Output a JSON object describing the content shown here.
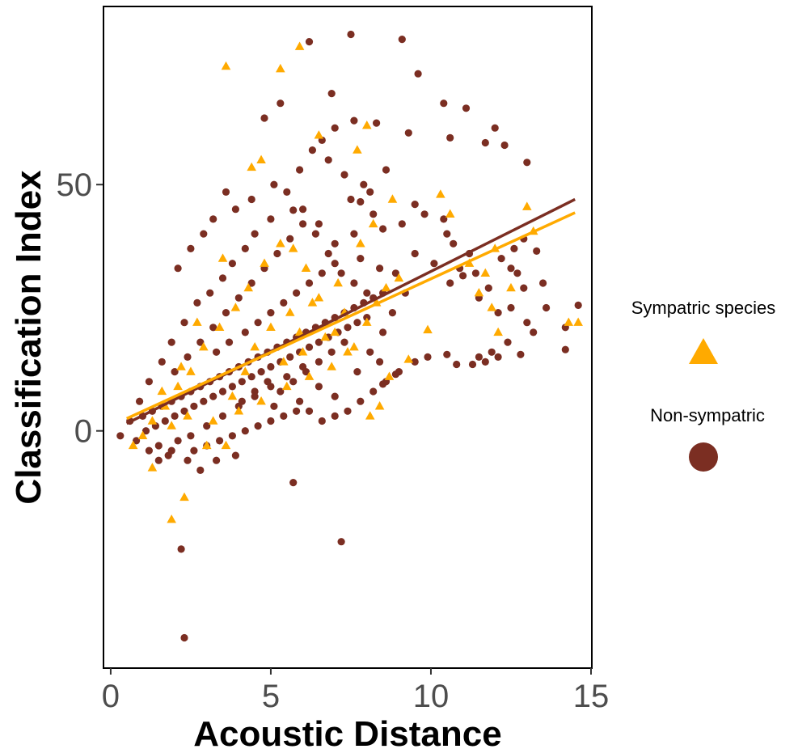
{
  "chart_data": {
    "type": "scatter",
    "title": "",
    "xlabel": "Acoustic Distance",
    "ylabel": "Classification Index",
    "xlim": [
      -0.2,
      15
    ],
    "ylim": [
      -48,
      86
    ],
    "x_ticks": [
      0,
      5,
      10,
      15
    ],
    "x_tick_labels": [
      "0",
      "5",
      "10",
      "15"
    ],
    "y_ticks": [
      0,
      50
    ],
    "y_tick_labels": [
      "0",
      "50"
    ],
    "grid": false,
    "legend_position": "right",
    "colors": {
      "sympatric": "#FFAA00",
      "non_sympatric": "#7B2E22"
    },
    "series": [
      {
        "name": "Non-sympatric",
        "marker": "circle",
        "color": "#7B2E22",
        "points": [
          [
            2.3,
            -42
          ],
          [
            2.2,
            -24
          ],
          [
            5.7,
            -10.5
          ],
          [
            7.2,
            -22.5
          ],
          [
            7.5,
            80.5
          ],
          [
            9.1,
            79.5
          ],
          [
            6.2,
            79
          ],
          [
            6.9,
            68.5
          ],
          [
            9.6,
            72.5
          ],
          [
            10.4,
            66.5
          ],
          [
            11.1,
            65.5
          ],
          [
            12.0,
            61.5
          ],
          [
            4.8,
            63.5
          ],
          [
            5.3,
            66.5
          ],
          [
            7.0,
            61.5
          ],
          [
            7.6,
            63
          ],
          [
            8.3,
            62.5
          ],
          [
            9.3,
            60.5
          ],
          [
            10.6,
            59.5
          ],
          [
            11.7,
            58.5
          ],
          [
            12.3,
            58
          ],
          [
            13.0,
            54.5
          ],
          [
            3.6,
            48.5
          ],
          [
            5.7,
            44.8
          ],
          [
            8.1,
            48.5
          ],
          [
            7.8,
            46.5
          ],
          [
            14.2,
            21
          ],
          [
            14.2,
            16.5
          ],
          [
            14.6,
            25.5
          ],
          [
            12.1,
            24
          ],
          [
            12.5,
            25
          ],
          [
            13.0,
            22
          ],
          [
            12.8,
            15.5
          ],
          [
            12.1,
            15
          ],
          [
            11.7,
            14
          ],
          [
            11.3,
            13.5
          ],
          [
            9.5,
            14
          ],
          [
            9.9,
            15
          ],
          [
            8.9,
            11.5
          ],
          [
            8.5,
            9.5
          ],
          [
            8.4,
            14
          ],
          [
            10.5,
            15.5
          ],
          [
            10.8,
            13.5
          ],
          [
            10.7,
            38
          ],
          [
            11.2,
            36
          ],
          [
            10.6,
            30
          ],
          [
            11.5,
            27
          ],
          [
            11.0,
            31.5
          ],
          [
            12.5,
            33
          ],
          [
            12.7,
            32
          ],
          [
            12.9,
            29
          ],
          [
            13.3,
            36.5
          ],
          [
            12.9,
            39
          ],
          [
            10.4,
            43
          ],
          [
            10.5,
            40
          ],
          [
            9.8,
            44
          ],
          [
            9.5,
            46
          ],
          [
            8.5,
            41
          ],
          [
            8.4,
            33
          ],
          [
            8.9,
            32
          ],
          [
            7.8,
            35
          ],
          [
            7.6,
            40
          ],
          [
            7.0,
            38
          ],
          [
            6.5,
            42
          ],
          [
            6.0,
            45
          ],
          [
            5.5,
            48.5
          ],
          [
            5.0,
            43
          ],
          [
            4.5,
            40
          ],
          [
            4.2,
            37
          ],
          [
            3.8,
            34
          ],
          [
            3.5,
            31
          ],
          [
            3.1,
            28
          ],
          [
            2.7,
            26
          ],
          [
            2.3,
            22
          ],
          [
            1.9,
            18
          ],
          [
            1.6,
            14
          ],
          [
            1.2,
            10
          ],
          [
            0.9,
            6
          ],
          [
            0.6,
            2
          ],
          [
            0.3,
            -1
          ],
          [
            1.5,
            -3
          ],
          [
            1.8,
            -5
          ],
          [
            2.1,
            -2
          ],
          [
            2.6,
            -4
          ],
          [
            3.0,
            -3
          ],
          [
            3.4,
            -2
          ],
          [
            3.8,
            -1
          ],
          [
            4.2,
            0
          ],
          [
            4.6,
            1
          ],
          [
            5.0,
            2
          ],
          [
            5.4,
            3
          ],
          [
            5.8,
            4
          ],
          [
            6.2,
            4
          ],
          [
            6.6,
            2
          ],
          [
            7.0,
            3
          ],
          [
            7.4,
            4
          ],
          [
            7.8,
            6
          ],
          [
            8.2,
            8
          ],
          [
            8.6,
            10
          ],
          [
            9.0,
            12
          ],
          [
            1.0,
            3
          ],
          [
            1.3,
            4
          ],
          [
            1.6,
            5
          ],
          [
            1.9,
            6
          ],
          [
            2.2,
            7
          ],
          [
            2.5,
            8
          ],
          [
            2.8,
            9
          ],
          [
            3.1,
            10
          ],
          [
            3.4,
            11
          ],
          [
            3.7,
            12
          ],
          [
            4.0,
            13
          ],
          [
            4.3,
            14
          ],
          [
            4.6,
            15
          ],
          [
            4.9,
            16
          ],
          [
            5.2,
            17
          ],
          [
            5.5,
            18
          ],
          [
            5.8,
            19
          ],
          [
            6.1,
            20
          ],
          [
            6.4,
            21
          ],
          [
            6.7,
            22
          ],
          [
            7.0,
            23
          ],
          [
            7.3,
            24
          ],
          [
            7.6,
            25
          ],
          [
            7.9,
            26
          ],
          [
            8.2,
            27
          ],
          [
            8.5,
            28
          ],
          [
            1.1,
            0
          ],
          [
            1.4,
            1
          ],
          [
            1.7,
            2
          ],
          [
            2.0,
            3
          ],
          [
            2.3,
            4
          ],
          [
            2.6,
            5
          ],
          [
            2.9,
            6
          ],
          [
            3.2,
            7
          ],
          [
            3.5,
            8
          ],
          [
            3.8,
            9
          ],
          [
            4.1,
            10
          ],
          [
            4.4,
            11
          ],
          [
            4.7,
            12
          ],
          [
            5.0,
            13
          ],
          [
            5.3,
            14
          ],
          [
            5.6,
            15
          ],
          [
            5.9,
            16
          ],
          [
            6.2,
            17
          ],
          [
            6.5,
            18
          ],
          [
            6.8,
            19
          ],
          [
            7.1,
            20
          ],
          [
            7.4,
            21
          ],
          [
            7.7,
            22
          ],
          [
            8.0,
            23
          ],
          [
            2.0,
            12
          ],
          [
            2.4,
            15
          ],
          [
            2.8,
            18
          ],
          [
            3.2,
            21
          ],
          [
            3.6,
            24
          ],
          [
            4.0,
            27
          ],
          [
            4.4,
            30
          ],
          [
            4.8,
            33
          ],
          [
            5.2,
            36
          ],
          [
            5.6,
            39
          ],
          [
            6.0,
            42
          ],
          [
            6.4,
            40
          ],
          [
            6.8,
            36
          ],
          [
            7.2,
            32
          ],
          [
            7.6,
            30
          ],
          [
            8.0,
            28
          ],
          [
            4.2,
            20
          ],
          [
            4.6,
            22
          ],
          [
            5.0,
            24
          ],
          [
            5.4,
            26
          ],
          [
            5.8,
            28
          ],
          [
            6.2,
            30
          ],
          [
            6.6,
            32
          ],
          [
            7.0,
            34
          ],
          [
            3.3,
            16
          ],
          [
            3.7,
            18
          ],
          [
            4.1,
            6
          ],
          [
            4.5,
            8
          ],
          [
            4.9,
            10
          ],
          [
            5.3,
            8
          ],
          [
            5.7,
            10
          ],
          [
            6.1,
            12
          ],
          [
            6.5,
            14
          ],
          [
            6.9,
            16
          ],
          [
            7.3,
            18
          ],
          [
            7.7,
            12
          ],
          [
            8.1,
            16
          ],
          [
            8.5,
            20
          ],
          [
            8.8,
            24
          ],
          [
            9.2,
            28
          ],
          [
            2.5,
            -1
          ],
          [
            3.0,
            1
          ],
          [
            3.5,
            3
          ],
          [
            4.0,
            5
          ],
          [
            4.5,
            7
          ],
          [
            5.0,
            9
          ],
          [
            5.5,
            11
          ],
          [
            6.0,
            13
          ],
          [
            6.5,
            9
          ],
          [
            7.0,
            7
          ],
          [
            0.8,
            -2
          ],
          [
            1.2,
            -4
          ],
          [
            1.5,
            -6
          ],
          [
            1.9,
            -4
          ],
          [
            2.4,
            -6
          ],
          [
            2.8,
            -8
          ],
          [
            3.3,
            -6
          ],
          [
            3.9,
            -5
          ],
          [
            5.1,
            5
          ],
          [
            5.9,
            6
          ],
          [
            7.5,
            47
          ],
          [
            7.9,
            50
          ],
          [
            8.2,
            44
          ],
          [
            7.3,
            52
          ],
          [
            6.8,
            55
          ],
          [
            8.6,
            53
          ],
          [
            9.1,
            42
          ],
          [
            9.5,
            36
          ],
          [
            10.1,
            34
          ],
          [
            10.9,
            33
          ],
          [
            11.4,
            32
          ],
          [
            11.8,
            29
          ],
          [
            12.2,
            35
          ],
          [
            12.6,
            37
          ],
          [
            13.5,
            30
          ],
          [
            13.6,
            25
          ],
          [
            13.2,
            20
          ],
          [
            12.4,
            18
          ],
          [
            11.9,
            16
          ],
          [
            11.5,
            15
          ],
          [
            6.3,
            57
          ],
          [
            6.6,
            59
          ],
          [
            5.9,
            53
          ],
          [
            5.1,
            50
          ],
          [
            4.4,
            47
          ],
          [
            3.9,
            45
          ],
          [
            3.2,
            43
          ],
          [
            2.9,
            40
          ],
          [
            2.5,
            37
          ],
          [
            2.1,
            33
          ]
        ]
      },
      {
        "name": "Sympatric species",
        "marker": "triangle",
        "color": "#FFAA00",
        "points": [
          [
            3.6,
            74
          ],
          [
            5.3,
            73.5
          ],
          [
            5.9,
            78
          ],
          [
            1.9,
            -18
          ],
          [
            2.3,
            -13.5
          ],
          [
            1.3,
            -7.5
          ],
          [
            14.6,
            22
          ],
          [
            14.3,
            22
          ],
          [
            13.0,
            45.5
          ],
          [
            13.2,
            40.5
          ],
          [
            12.0,
            37
          ],
          [
            11.7,
            32
          ],
          [
            11.2,
            34
          ],
          [
            10.6,
            44
          ],
          [
            10.3,
            48
          ],
          [
            9.9,
            20.5
          ],
          [
            9.3,
            14.5
          ],
          [
            8.7,
            11
          ],
          [
            8.4,
            5
          ],
          [
            8.1,
            3
          ],
          [
            7.4,
            16
          ],
          [
            7.0,
            20
          ],
          [
            6.5,
            27
          ],
          [
            6.1,
            33
          ],
          [
            5.7,
            37
          ],
          [
            5.3,
            38
          ],
          [
            4.8,
            34
          ],
          [
            4.3,
            29
          ],
          [
            3.9,
            25
          ],
          [
            3.4,
            21
          ],
          [
            2.9,
            17
          ],
          [
            2.5,
            12
          ],
          [
            2.1,
            9
          ],
          [
            1.7,
            5
          ],
          [
            1.3,
            2
          ],
          [
            1.0,
            -1
          ],
          [
            0.7,
            -3
          ],
          [
            3.2,
            2
          ],
          [
            4.0,
            4
          ],
          [
            4.7,
            6
          ],
          [
            5.5,
            9
          ],
          [
            6.2,
            11
          ],
          [
            6.9,
            13
          ],
          [
            7.6,
            17
          ],
          [
            8.0,
            22
          ],
          [
            8.3,
            26
          ],
          [
            8.6,
            29
          ],
          [
            9.0,
            31
          ],
          [
            4.5,
            17
          ],
          [
            5.0,
            21
          ],
          [
            5.6,
            24
          ],
          [
            6.3,
            26
          ],
          [
            7.1,
            30
          ],
          [
            7.8,
            38
          ],
          [
            8.2,
            42
          ],
          [
            8.8,
            47
          ],
          [
            7.7,
            57
          ],
          [
            8.0,
            62
          ],
          [
            6.5,
            60
          ],
          [
            4.7,
            55
          ],
          [
            4.4,
            53.5
          ],
          [
            3.5,
            35
          ],
          [
            2.7,
            22
          ],
          [
            2.2,
            13
          ],
          [
            1.6,
            8
          ],
          [
            3.0,
            -3
          ],
          [
            3.6,
            -3
          ],
          [
            5.4,
            14
          ],
          [
            6.0,
            16
          ],
          [
            6.7,
            19
          ],
          [
            7.3,
            24
          ],
          [
            11.5,
            28
          ],
          [
            11.9,
            25
          ],
          [
            12.5,
            29
          ],
          [
            12.1,
            20
          ],
          [
            2.4,
            3
          ],
          [
            1.9,
            1
          ],
          [
            3.8,
            7
          ],
          [
            4.2,
            12
          ],
          [
            5.9,
            20
          ]
        ]
      }
    ],
    "trend_lines": [
      {
        "series": "Non-sympatric",
        "color": "#7B2E22",
        "x": [
          0.5,
          14.5
        ],
        "y": [
          1.5,
          47
        ]
      },
      {
        "series": "Sympatric species",
        "color": "#FFAA00",
        "x": [
          0.5,
          14.5
        ],
        "y": [
          2.5,
          44.3
        ]
      }
    ],
    "legend": {
      "entries": [
        {
          "label": "Sympatric species",
          "marker": "triangle",
          "color": "#FFAA00"
        },
        {
          "label": "Non-sympatric",
          "marker": "circle",
          "color": "#7B2E22"
        }
      ]
    }
  }
}
